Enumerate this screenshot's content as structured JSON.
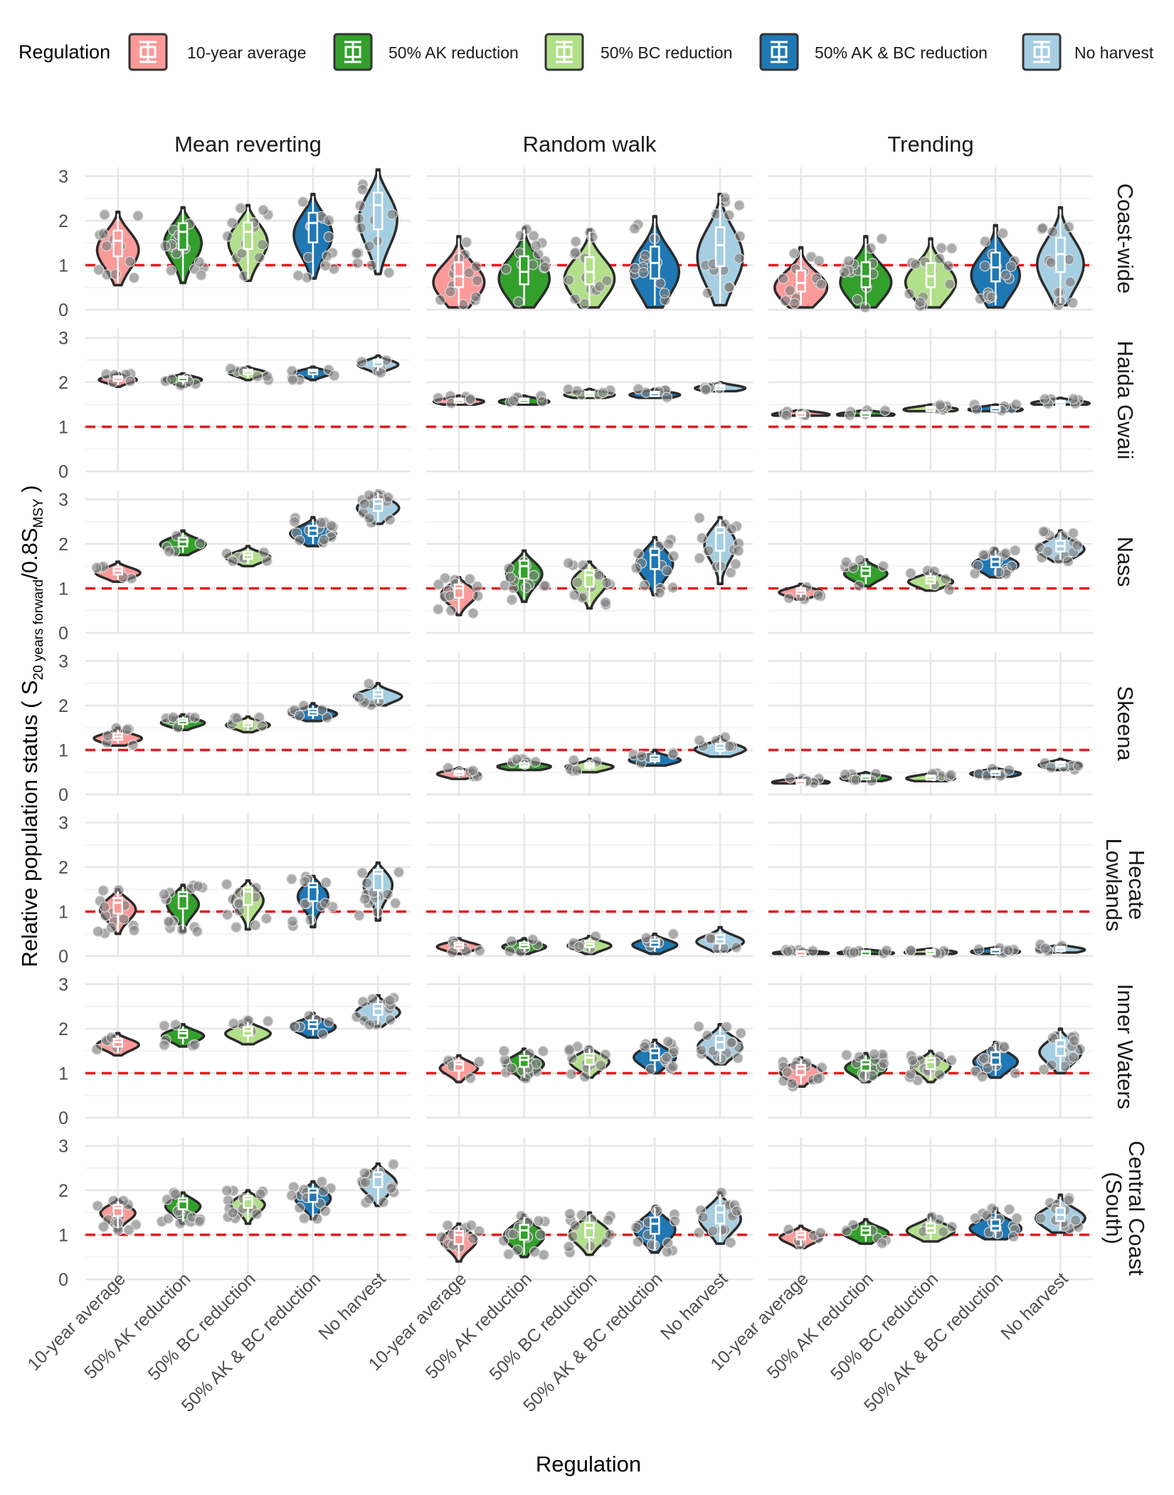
{
  "chart_data": {
    "type": "violin",
    "xlabel": "Regulation",
    "ylabel_main": "Relative population status ( S",
    "ylabel_sub1": "20 years forward",
    "ylabel_mid": "/0.8S",
    "ylabel_sub2": "MSY",
    "ylabel_end": " )",
    "ylim": [
      0,
      3.2
    ],
    "yticks": [
      "0",
      "1",
      "2",
      "3"
    ],
    "reference_line": {
      "y": 1,
      "color": "#e31a1c",
      "style": "dashed"
    },
    "legend": {
      "title": "Regulation",
      "position": "top",
      "entries": [
        {
          "label": "10-year average",
          "color": "#fb9a99"
        },
        {
          "label": "50% AK reduction",
          "color": "#33a02c"
        },
        {
          "label": "50% BC reduction",
          "color": "#b2df8a"
        },
        {
          "label": "50% AK & BC reduction",
          "color": "#1f78b4"
        },
        {
          "label": "No harvest",
          "color": "#a6cee3"
        }
      ]
    },
    "categories": [
      "10-year average",
      "50% AK reduction",
      "50% BC reduction",
      "50% AK & BC reduction",
      "No harvest"
    ],
    "columns": [
      "Mean reverting",
      "Random walk",
      "Trending"
    ],
    "rows": [
      {
        "name": "Coast-wide",
        "label_lines": [
          "Coast-wide"
        ],
        "panels": [
          {
            "min": [
              0.55,
              0.6,
              0.65,
              0.7,
              0.8
            ],
            "median": [
              1.55,
              1.75,
              1.75,
              1.95,
              2.35
            ],
            "max": [
              2.2,
              2.3,
              2.35,
              2.6,
              3.15
            ]
          },
          {
            "min": [
              0.05,
              0.05,
              0.05,
              0.05,
              0.1
            ],
            "median": [
              0.75,
              0.85,
              0.85,
              1.05,
              1.45
            ],
            "max": [
              1.65,
              1.85,
              1.8,
              2.1,
              2.6
            ]
          },
          {
            "min": [
              0.05,
              0.05,
              0.05,
              0.05,
              0.1
            ],
            "median": [
              0.6,
              0.75,
              0.75,
              0.95,
              1.25
            ],
            "max": [
              1.4,
              1.65,
              1.6,
              1.9,
              2.3
            ]
          }
        ]
      },
      {
        "name": "Haida Gwaii",
        "label_lines": [
          "Haida Gwaii"
        ],
        "panels": [
          {
            "min": [
              1.9,
              1.9,
              2.05,
              2.05,
              2.2
            ],
            "median": [
              2.1,
              2.1,
              2.25,
              2.25,
              2.45
            ],
            "max": [
              2.2,
              2.2,
              2.35,
              2.35,
              2.6
            ]
          },
          {
            "min": [
              1.5,
              1.5,
              1.65,
              1.65,
              1.8
            ],
            "median": [
              1.6,
              1.6,
              1.75,
              1.75,
              1.9
            ],
            "max": [
              1.7,
              1.7,
              1.85,
              1.85,
              2.0
            ]
          },
          {
            "min": [
              1.25,
              1.25,
              1.35,
              1.35,
              1.5
            ],
            "median": [
              1.3,
              1.3,
              1.42,
              1.42,
              1.55
            ],
            "max": [
              1.38,
              1.38,
              1.5,
              1.5,
              1.65
            ]
          }
        ]
      },
      {
        "name": "Nass",
        "label_lines": [
          "Nass"
        ],
        "panels": [
          {
            "min": [
              1.15,
              1.75,
              1.5,
              1.95,
              2.45
            ],
            "median": [
              1.4,
              2.05,
              1.75,
              2.3,
              2.9
            ],
            "max": [
              1.6,
              2.3,
              1.95,
              2.6,
              3.2
            ]
          },
          {
            "min": [
              0.4,
              0.7,
              0.55,
              0.85,
              1.1
            ],
            "median": [
              1.0,
              1.5,
              1.3,
              1.75,
              2.25
            ],
            "max": [
              1.25,
              1.85,
              1.6,
              2.15,
              2.6
            ]
          },
          {
            "min": [
              0.75,
              1.05,
              0.95,
              1.25,
              1.6
            ],
            "median": [
              0.95,
              1.4,
              1.2,
              1.6,
              1.95
            ],
            "max": [
              1.1,
              1.65,
              1.4,
              1.9,
              2.3
            ]
          }
        ]
      },
      {
        "name": "Skeena",
        "label_lines": [
          "Skeena"
        ],
        "panels": [
          {
            "min": [
              1.1,
              1.45,
              1.4,
              1.65,
              2.0
            ],
            "median": [
              1.3,
              1.65,
              1.6,
              1.85,
              2.25
            ],
            "max": [
              1.5,
              1.8,
              1.75,
              2.05,
              2.5
            ]
          },
          {
            "min": [
              0.35,
              0.55,
              0.5,
              0.65,
              0.85
            ],
            "median": [
              0.5,
              0.65,
              0.65,
              0.8,
              1.05
            ],
            "max": [
              0.6,
              0.8,
              0.8,
              1.0,
              1.3
            ]
          },
          {
            "min": [
              0.25,
              0.3,
              0.3,
              0.4,
              0.55
            ],
            "median": [
              0.3,
              0.4,
              0.4,
              0.5,
              0.7
            ],
            "max": [
              0.38,
              0.5,
              0.48,
              0.6,
              0.8
            ]
          }
        ]
      },
      {
        "name": "Hecate Lowlands",
        "label_lines": [
          "Hecate",
          "Lowlands"
        ],
        "panels": [
          {
            "min": [
              0.5,
              0.55,
              0.6,
              0.65,
              0.8
            ],
            "median": [
              1.2,
              1.35,
              1.45,
              1.55,
              1.85
            ],
            "max": [
              1.5,
              1.6,
              1.7,
              1.8,
              2.1
            ]
          },
          {
            "min": [
              0.05,
              0.05,
              0.05,
              0.05,
              0.1
            ],
            "median": [
              0.25,
              0.25,
              0.28,
              0.3,
              0.38
            ],
            "max": [
              0.4,
              0.4,
              0.45,
              0.5,
              0.65
            ]
          },
          {
            "min": [
              0.05,
              0.05,
              0.05,
              0.05,
              0.08
            ],
            "median": [
              0.1,
              0.1,
              0.12,
              0.14,
              0.18
            ],
            "max": [
              0.14,
              0.15,
              0.17,
              0.2,
              0.26
            ]
          }
        ]
      },
      {
        "name": "Inner Waters",
        "label_lines": [
          "Inner Waters"
        ],
        "panels": [
          {
            "min": [
              1.4,
              1.6,
              1.65,
              1.8,
              2.05
            ],
            "median": [
              1.7,
              1.9,
              1.95,
              2.1,
              2.45
            ],
            "max": [
              1.9,
              2.1,
              2.2,
              2.35,
              2.75
            ]
          },
          {
            "min": [
              0.8,
              0.85,
              0.9,
              1.0,
              1.2
            ],
            "median": [
              1.2,
              1.3,
              1.35,
              1.45,
              1.7
            ],
            "max": [
              1.4,
              1.55,
              1.6,
              1.75,
              2.1
            ]
          },
          {
            "min": [
              0.7,
              0.8,
              0.8,
              0.9,
              1.0
            ],
            "median": [
              1.1,
              1.2,
              1.25,
              1.35,
              1.6
            ],
            "max": [
              1.35,
              1.45,
              1.5,
              1.7,
              2.0
            ]
          }
        ]
      },
      {
        "name": "Central Coast (South)",
        "label_lines": [
          "Central Coast",
          "(South)"
        ],
        "panels": [
          {
            "min": [
              1.1,
              1.25,
              1.25,
              1.35,
              1.65
            ],
            "median": [
              1.6,
              1.75,
              1.8,
              1.95,
              2.3
            ],
            "max": [
              1.8,
              1.95,
              2.0,
              2.2,
              2.6
            ]
          },
          {
            "min": [
              0.4,
              0.5,
              0.55,
              0.6,
              0.8
            ],
            "median": [
              1.0,
              1.1,
              1.15,
              1.25,
              1.5
            ],
            "max": [
              1.25,
              1.45,
              1.5,
              1.65,
              1.95
            ]
          },
          {
            "min": [
              0.7,
              0.8,
              0.85,
              0.9,
              1.05
            ],
            "median": [
              1.0,
              1.1,
              1.15,
              1.2,
              1.45
            ],
            "max": [
              1.2,
              1.35,
              1.45,
              1.6,
              1.9
            ]
          }
        ]
      }
    ]
  }
}
